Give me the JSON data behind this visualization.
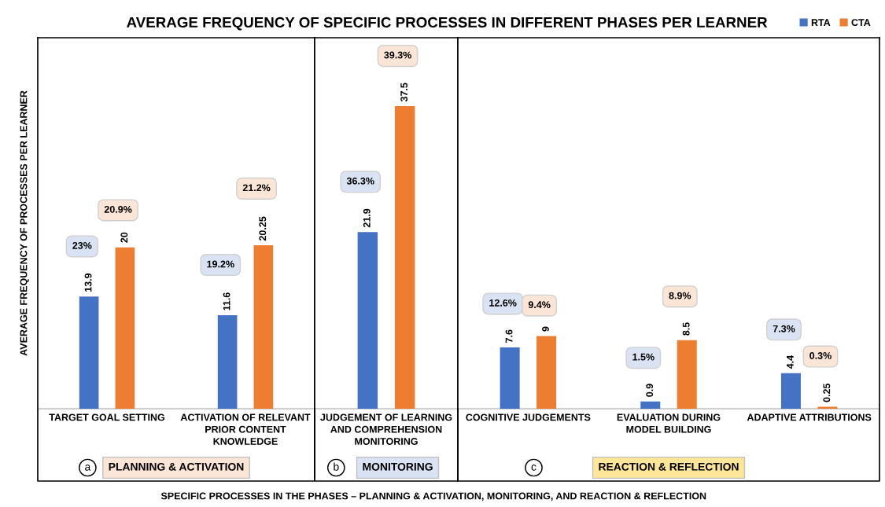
{
  "chart_data": [
    {
      "type": "bar",
      "title": "AVERAGE FREQUENCY OF SPECIFIC PROCESSES IN DIFFERENT PHASES PER LEARNER",
      "ylabel": "AVERAGE FREQUENCY OF PROCESSES PER LEARNER",
      "xlabel": "SPECIFIC PROCESSES IN THE PHASES – PLANNING & ACTIVATION, MONITORING, AND REACTION & REFLECTION",
      "categories": [
        "TARGET GOAL SETTING",
        "ACTIVATION OF RELEVANT\nPRIOR CONTENT\nKNOWLEDGE"
      ],
      "series": [
        {
          "color": "#4472c4",
          "values": [
            13.9,
            11.6
          ]
        },
        {
          "color": "#ed7d31",
          "values": [
            20,
            20.25
          ]
        }
      ],
      "data_labels": true,
      "annotations": [
        "a",
        "PLANNING & ACTIVATION",
        "23%",
        "20.9%",
        "19.2%",
        "21.2%"
      ]
    },
    {
      "type": "bar",
      "categories": [
        "JUDGEMENT OF LEARNING\nAND COMPREHENSION\nMONITORING"
      ],
      "series": [
        {
          "color": "#4472c4",
          "values": [
            21.9
          ]
        },
        {
          "color": "#ed7d31",
          "values": [
            37.5
          ]
        }
      ],
      "data_labels": true,
      "annotations": [
        "b",
        "MONITORING",
        "36.3%",
        "39.3%"
      ]
    },
    {
      "type": "bar",
      "categories": [
        "COGNITIVE JUDGEMENTS",
        "EVALUATION DURING\nMODEL BUILDING",
        "ADAPTIVE ATTRIBUTIONS"
      ],
      "series": [
        {
          "name": "RTA",
          "color": "#4472c4",
          "values": [
            7.6,
            0.9,
            4.4
          ]
        },
        {
          "name": "CTA",
          "color": "#ed7d31",
          "values": [
            9,
            8.5,
            0.25
          ]
        }
      ],
      "data_labels": true,
      "legend": "top right",
      "annotations": [
        "c",
        "REACTION & REFLECTION",
        "12.6%",
        "9.4%",
        "1.5%",
        "8.9%",
        "7.3%",
        "0.3%"
      ]
    }
  ]
}
